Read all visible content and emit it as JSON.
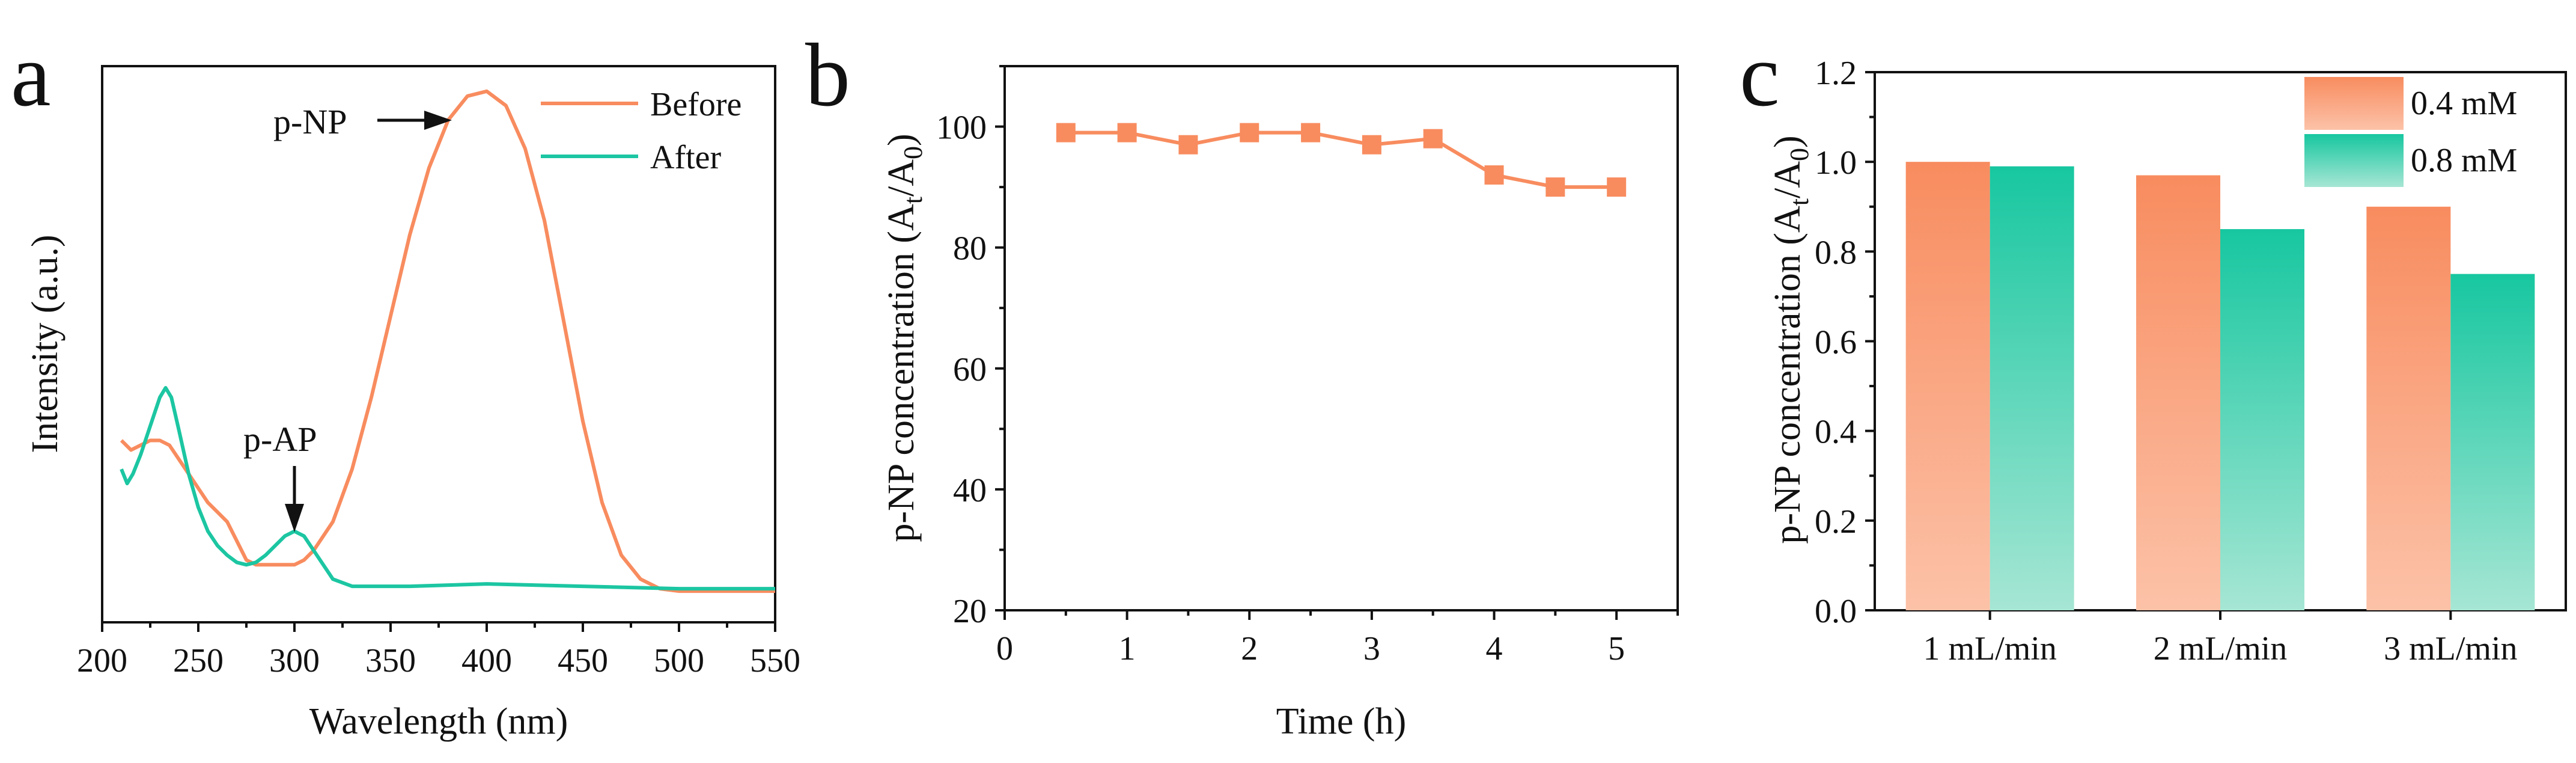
{
  "colors": {
    "before": "#f88c5f",
    "after": "#1cc6a2",
    "dark": "#111111"
  },
  "chart_data": [
    {
      "panel": "a",
      "type": "line",
      "xlabel": "Wavelength (nm)",
      "ylabel": "Intensity (a.u.)",
      "xlim": [
        200,
        550
      ],
      "ylim": [
        0,
        1.1
      ],
      "xticks": [
        "200",
        "250",
        "300",
        "350",
        "400",
        "450",
        "500",
        "550"
      ],
      "legend": {
        "position": "top-right",
        "entries": [
          "Before",
          "After"
        ]
      },
      "annotations": [
        {
          "text": "p-NP",
          "arrow": "right",
          "x": 385,
          "y": 1.0
        },
        {
          "text": "p-AP",
          "arrow": "down",
          "x": 300,
          "y": 0.15
        }
      ],
      "series": [
        {
          "name": "Before",
          "x": [
            210,
            215,
            220,
            225,
            230,
            235,
            240,
            245,
            250,
            255,
            260,
            265,
            270,
            275,
            280,
            285,
            290,
            295,
            300,
            305,
            310,
            320,
            330,
            340,
            350,
            360,
            370,
            380,
            390,
            400,
            410,
            420,
            430,
            440,
            450,
            460,
            470,
            480,
            490,
            500,
            520,
            550
          ],
          "y": [
            0.33,
            0.31,
            0.32,
            0.33,
            0.33,
            0.32,
            0.29,
            0.26,
            0.23,
            0.2,
            0.18,
            0.16,
            0.12,
            0.08,
            0.07,
            0.07,
            0.07,
            0.07,
            0.07,
            0.08,
            0.1,
            0.16,
            0.27,
            0.42,
            0.59,
            0.76,
            0.9,
            1.0,
            1.05,
            1.06,
            1.03,
            0.94,
            0.79,
            0.58,
            0.37,
            0.2,
            0.09,
            0.04,
            0.02,
            0.015,
            0.015,
            0.015
          ]
        },
        {
          "name": "After",
          "x": [
            210,
            213,
            216,
            220,
            225,
            230,
            233,
            236,
            240,
            245,
            250,
            255,
            260,
            265,
            270,
            275,
            280,
            285,
            290,
            295,
            300,
            305,
            310,
            315,
            320,
            330,
            340,
            360,
            400,
            450,
            500,
            550
          ],
          "y": [
            0.27,
            0.24,
            0.26,
            0.3,
            0.36,
            0.42,
            0.44,
            0.42,
            0.35,
            0.26,
            0.19,
            0.14,
            0.11,
            0.09,
            0.075,
            0.07,
            0.075,
            0.09,
            0.11,
            0.13,
            0.14,
            0.13,
            0.1,
            0.07,
            0.04,
            0.025,
            0.025,
            0.025,
            0.03,
            0.025,
            0.02,
            0.02
          ]
        }
      ]
    },
    {
      "panel": "b",
      "type": "line",
      "xlabel": "Time (h)",
      "ylabel": {
        "main": "p-NP concentration (A",
        "sub1": "t",
        "mid": "/A",
        "sub2": "0",
        "end": ")"
      },
      "xlim": [
        0,
        5.5
      ],
      "ylim": [
        20,
        110
      ],
      "xticks": [
        "0",
        "1",
        "2",
        "3",
        "4",
        "5"
      ],
      "yticks": [
        "20",
        "40",
        "60",
        "80",
        "100"
      ],
      "series": [
        {
          "name": "p-NP concentration",
          "x": [
            0.5,
            1.0,
            1.5,
            2.0,
            2.5,
            3.0,
            3.5,
            4.0,
            4.5,
            5.0
          ],
          "y": [
            99,
            99,
            97,
            99,
            99,
            97,
            98,
            92,
            90,
            90
          ]
        }
      ]
    },
    {
      "panel": "c",
      "type": "bar",
      "xlabel": "",
      "ylabel": {
        "main": "p-NP concentration (A",
        "sub1": "t",
        "mid": "/A",
        "sub2": "0",
        "end": ")"
      },
      "ylim": [
        0,
        1.2
      ],
      "categories": [
        "1 mL/min",
        "2 mL/min",
        "3 mL/min"
      ],
      "yticks": [
        "0.0",
        "0.2",
        "0.4",
        "0.6",
        "0.8",
        "1.0",
        "1.2"
      ],
      "legend": {
        "position": "top-right"
      },
      "series": [
        {
          "name": "0.4 mM",
          "values": [
            1.0,
            0.97,
            0.9
          ]
        },
        {
          "name": "0.8 mM",
          "values": [
            0.99,
            0.85,
            0.75
          ]
        }
      ]
    }
  ]
}
